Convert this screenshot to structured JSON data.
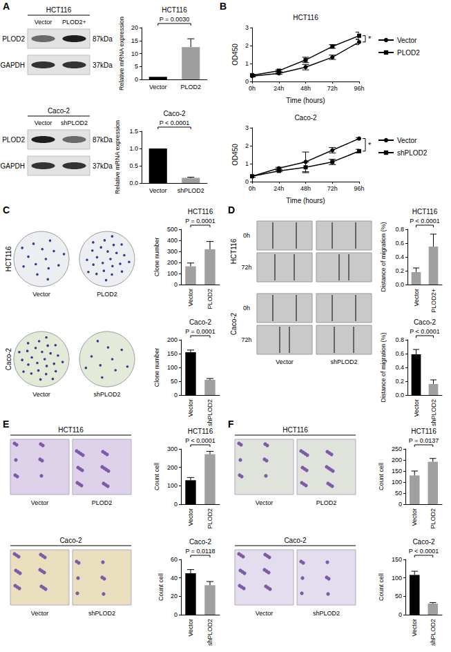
{
  "chart_data": [
    {
      "type": "bar",
      "title": "HCT116",
      "categories": [
        "Vector",
        "PLOD2"
      ],
      "values": [
        1,
        12.5
      ],
      "errors": [
        0,
        3.2
      ],
      "colors": [
        "#000000",
        "#9e9e9e"
      ],
      "ylabel": "Relative mRNA expression",
      "ylim": [
        0,
        20
      ],
      "yticks": [
        0,
        5,
        10,
        15,
        20
      ],
      "annotations": [
        "P = 0.0030"
      ]
    },
    {
      "type": "bar",
      "title": "Caco-2",
      "categories": [
        "Vector",
        "shPLOD2"
      ],
      "values": [
        1,
        0.15
      ],
      "errors": [
        0,
        0.02
      ],
      "colors": [
        "#000000",
        "#9e9e9e"
      ],
      "ylabel": "Relative mRNA expression",
      "ylim": [
        0,
        1.5
      ],
      "yticks": [
        {
          "value": 0,
          "label": "0.0"
        },
        0.5,
        {
          "value": 1,
          "label": "1.0"
        },
        1.5
      ],
      "annotations": [
        "P < 0.0001"
      ]
    },
    {
      "type": "line",
      "title": "HCT116",
      "categories": [
        "0h",
        "24h",
        "48h",
        "72h",
        "96h"
      ],
      "series": [
        {
          "name": "Vector",
          "color": "#000000",
          "marker": "circle",
          "values": [
            0.3,
            0.45,
            0.8,
            1.35,
            2.2
          ],
          "errors": [
            0.05,
            0.05,
            0.15,
            0.12,
            0.15
          ]
        },
        {
          "name": "PLOD2",
          "color": "#000000",
          "marker": "square",
          "values": [
            0.35,
            0.6,
            1.2,
            1.95,
            2.55
          ],
          "errors": [
            0.05,
            0.05,
            0.15,
            0.1,
            0.2
          ]
        }
      ],
      "xlabel": "Time (hours)",
      "ylabel": "OD450",
      "ylim": [
        0,
        3
      ],
      "yticks": [
        0,
        1,
        2,
        3
      ],
      "legend": "right",
      "annotations": [
        "*"
      ]
    },
    {
      "type": "line",
      "title": "Caco-2",
      "categories": [
        "0h",
        "24h",
        "48h",
        "72h",
        "96h"
      ],
      "series": [
        {
          "name": "Vector",
          "color": "#000000",
          "marker": "circle",
          "values": [
            0.3,
            0.75,
            1.1,
            1.75,
            2.4
          ],
          "errors": [
            0.05,
            0.05,
            0.55,
            0.15,
            0.05
          ]
        },
        {
          "name": "shPLOD2",
          "color": "#000000",
          "marker": "square",
          "values": [
            0.3,
            0.6,
            0.8,
            1.1,
            1.7
          ],
          "errors": [
            0.05,
            0.05,
            0.3,
            0.15,
            0.1
          ]
        }
      ],
      "xlabel": "Time (hours)",
      "ylabel": "OD450",
      "ylim": [
        0,
        3
      ],
      "yticks": [
        0,
        1,
        2,
        3
      ],
      "legend": "right",
      "annotations": [
        "*"
      ]
    },
    {
      "type": "bar",
      "title": "HCT116",
      "categories": [
        "Vector",
        "PLOD2"
      ],
      "values": [
        165,
        320
      ],
      "errors": [
        30,
        70
      ],
      "colors": [
        "#a0a0a0",
        "#a0a0a0"
      ],
      "ylabel": "Clone number",
      "ylim": [
        0,
        500
      ],
      "yticks": [
        0,
        100,
        200,
        300,
        400,
        500
      ],
      "annotations": [
        "P = 0.0001"
      ]
    },
    {
      "type": "bar",
      "title": "Caco-2",
      "categories": [
        "Vector",
        "shPLOD2"
      ],
      "values": [
        155,
        55
      ],
      "errors": [
        8,
        5
      ],
      "colors": [
        "#000000",
        "#a0a0a0"
      ],
      "ylabel": "Clone number",
      "ylim": [
        0,
        200
      ],
      "yticks": [
        0,
        50,
        100,
        150,
        200
      ],
      "annotations": [
        "P = 0.0001"
      ]
    },
    {
      "type": "bar",
      "title": "HCT116",
      "categories": [
        "Vector",
        "PLOD2+"
      ],
      "values": [
        0.18,
        0.55
      ],
      "errors": [
        0.06,
        0.18
      ],
      "colors": [
        "#a0a0a0",
        "#a0a0a0"
      ],
      "ylabel": "Distance of migration (%)",
      "ylim": [
        0,
        0.8
      ],
      "yticks": [
        {
          "value": 0,
          "label": "0.0"
        },
        0.2,
        0.4,
        0.6,
        0.8
      ],
      "annotations": [
        "P < 0.0001"
      ]
    },
    {
      "type": "bar",
      "title": "Caco-2",
      "categories": [
        "Vector",
        "shPLOD2"
      ],
      "values": [
        0.59,
        0.16
      ],
      "errors": [
        0.07,
        0.06
      ],
      "colors": [
        "#000000",
        "#a0a0a0"
      ],
      "ylabel": "Distance of migration (%)",
      "ylim": [
        0,
        0.8
      ],
      "yticks": [
        {
          "value": 0,
          "label": "0.0"
        },
        0.2,
        0.4,
        0.6,
        0.8
      ],
      "annotations": [
        "P < 0.0001"
      ]
    },
    {
      "type": "bar",
      "title": "HCT116",
      "categories": [
        "Vector",
        "PLOD2"
      ],
      "values": [
        130,
        272
      ],
      "errors": [
        15,
        15
      ],
      "colors": [
        "#000000",
        "#a0a0a0"
      ],
      "ylabel": "Count cell",
      "ylim": [
        0,
        300
      ],
      "yticks": [
        0,
        100,
        200,
        300
      ],
      "annotations": [
        "P < 0.0001"
      ]
    },
    {
      "type": "bar",
      "title": "Caco-2",
      "categories": [
        "Vector",
        "shPLOD2"
      ],
      "values": [
        45,
        32
      ],
      "errors": [
        4,
        4
      ],
      "colors": [
        "#000000",
        "#a0a0a0"
      ],
      "ylabel": "Count cell",
      "ylim": [
        0,
        60
      ],
      "yticks": [
        0,
        20,
        40,
        60
      ],
      "annotations": [
        "P = 0.0118"
      ]
    },
    {
      "type": "bar",
      "title": "HCT116",
      "categories": [
        "Vector",
        "PLOD2"
      ],
      "values": [
        130,
        192
      ],
      "errors": [
        20,
        15
      ],
      "colors": [
        "#a0a0a0",
        "#a0a0a0"
      ],
      "ylabel": "Count cell",
      "ylim": [
        0,
        250
      ],
      "yticks": [
        0,
        50,
        100,
        150,
        200,
        250
      ],
      "annotations": [
        "P = 0.0137"
      ]
    },
    {
      "type": "bar",
      "title": "Caco-2",
      "categories": [
        "Vector",
        "shPLOD2"
      ],
      "values": [
        108,
        30
      ],
      "errors": [
        10,
        3
      ],
      "colors": [
        "#000000",
        "#a0a0a0"
      ],
      "ylabel": "Count cell",
      "ylim": [
        0,
        150
      ],
      "yticks": [
        0,
        50,
        100,
        150
      ],
      "annotations": [
        "P < 0.0001"
      ]
    }
  ],
  "figure": {
    "panels": [
      "A",
      "B",
      "C",
      "D",
      "E",
      "F"
    ],
    "blots": [
      {
        "title": "HCT116",
        "lanes": [
          "Vector",
          "PLOD2+"
        ],
        "bands": [
          {
            "label": "PLOD2",
            "size": "87kDa"
          },
          {
            "label": "GAPDH",
            "size": "37kDa"
          }
        ]
      },
      {
        "title": "Caco-2",
        "lanes": [
          "Vector",
          "shPLOD2"
        ],
        "bands": [
          {
            "label": "PLOD2",
            "size": "87kDa"
          },
          {
            "label": "GAPDH",
            "size": "37kDa"
          }
        ]
      }
    ],
    "colony_images": [
      {
        "row": "HCT116",
        "columns": [
          "Vector",
          "PLOD2"
        ]
      },
      {
        "row": "Caco-2",
        "columns": [
          "Vector",
          "shPLOD2"
        ]
      }
    ],
    "wound_images": {
      "rows": [
        "HCT116",
        "Caco-2"
      ],
      "times": [
        "0h",
        "72h"
      ],
      "columns": [
        "Vector",
        "shPLOD2"
      ]
    },
    "invasion_images": [
      {
        "row": "HCT116",
        "columns": [
          "Vector",
          "PLOD2"
        ]
      },
      {
        "row": "Caco-2",
        "columns": [
          "Vector",
          "shPLOD2"
        ]
      }
    ],
    "migration_images": [
      {
        "row": "HCT116",
        "columns": [
          "Vector",
          "PLOD2"
        ]
      },
      {
        "row": "Caco-2",
        "columns": [
          "Vector",
          "shPLOD2"
        ]
      }
    ]
  }
}
